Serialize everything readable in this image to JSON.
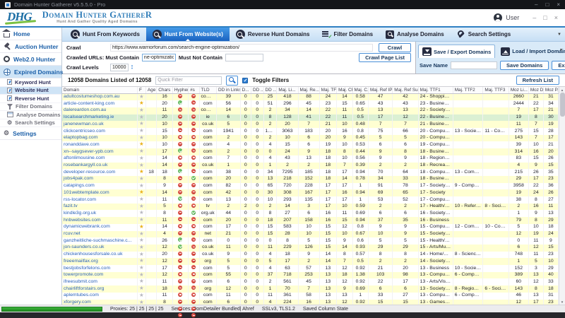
{
  "window": {
    "title": "Domain Hunter Gatherer v5.5.5.0 - Pro"
  },
  "header": {
    "logo": "DHG",
    "name": "Domain Hunter GathereR",
    "tagline": "Hunt And Gather Quality Aged Domains",
    "user": "User"
  },
  "tabs": [
    {
      "label": "Hunt From Keywords",
      "active": false
    },
    {
      "label": "Hunt From Website(s)",
      "active": true
    },
    {
      "label": "Reverse Hunt Domains",
      "active": false
    },
    {
      "label": "Filter Domains",
      "active": false
    },
    {
      "label": "Analyse Domains",
      "active": false
    },
    {
      "label": "Search Settings",
      "active": false
    }
  ],
  "sidebar": {
    "items": [
      {
        "label": "Home"
      },
      {
        "label": "Auction Hunter"
      },
      {
        "label": "Web2.0 Hunter"
      },
      {
        "label": "Expired Domains"
      }
    ],
    "sub_items": [
      {
        "label": "Keyword Hunt"
      },
      {
        "label": "Website Hunt"
      },
      {
        "label": "Reverse Hunt"
      },
      {
        "label": "Filter Domains"
      },
      {
        "label": "Analyse Domains"
      },
      {
        "label": "Search Settings"
      }
    ],
    "settings_label": "Settings"
  },
  "crawl": {
    "crawl_label": "Crawl",
    "url": "https://www.warriorforum.com/search-engine-optimization/",
    "crawl_button": "Crawl",
    "must_contain_label": "Crawled URLs: Must Contain",
    "must_contain_value": "ne-optimization",
    "must_not_contain_label": "Must Not Contain",
    "must_not_contain_value": "",
    "levels_label": "Crawl Levels",
    "levels_value": "10000",
    "crawl_page_list_button": "Crawl Page List"
  },
  "save_panel": {
    "save_export_tab": "Save / Export Domains",
    "load_import_tab": "Load / Import Domains",
    "save_name_label": "Save Name",
    "save_name_value": "",
    "save_domains_button": "Save Domains",
    "export_filtered_button": "Export Filtered"
  },
  "filter_bar": {
    "count_text": "12058 Domains Listed of 12058",
    "quick_filter_placeholder": "Quick Filter",
    "toggle_filters_label": "Toggle Filters",
    "refresh_button": "Refresh List"
  },
  "table": {
    "columns": [
      "Domain",
      "F",
      "Age",
      "Chars",
      "Hyphen",
      "#s",
      "TLD",
      "DD in Links",
      "D...",
      "DD ...",
      "DD ...",
      "Maj. Li...",
      "Maj. Re...",
      "Maj. TF",
      "Maj. CF",
      "Maj. C...",
      "Maj. Ref IPs",
      "Maj. Ref Su...",
      "Maj. TTF1",
      "Maj. TTF2",
      "Maj. TTF3",
      "Moz Li...",
      "Moz DA",
      "Moz PA"
    ],
    "rows": [
      [
        "adultcostumeshop.com.au",
        0,
        "",
        16,
        0,
        0,
        "com.au",
        39,
        0,
        0,
        25,
        418,
        88,
        24,
        14,
        0.58,
        47,
        42,
        "24 - Shopping/Clothi...",
        "",
        "",
        2660,
        21,
        31,
        0
      ],
      [
        "article-content-king.com",
        1,
        "",
        20,
        1,
        0,
        "com",
        56,
        0,
        0,
        51,
        296,
        45,
        23,
        15,
        0.65,
        43,
        43,
        "23 - Business/Publish...",
        "",
        "",
        2444,
        22,
        34,
        0
      ],
      [
        "dalereardon.com.au",
        0,
        "",
        11,
        0,
        0,
        "com.au",
        14,
        0,
        0,
        2,
        34,
        14,
        22,
        11,
        0.5,
        13,
        13,
        "22 - Society/People",
        "",
        "",
        7,
        17,
        21,
        0
      ],
      [
        "localsearchmarketing.ie",
        0,
        "",
        20,
        0,
        0,
        "ie",
        6,
        0,
        0,
        8,
        128,
        41,
        22,
        11,
        0.5,
        17,
        12,
        "22 - Business/Market...",
        "",
        "",
        19,
        8,
        30,
        1
      ],
      [
        "janenewman.co.uk",
        0,
        "",
        10,
        0,
        0,
        "co.uk",
        5,
        0,
        0,
        2,
        20,
        7,
        21,
        10,
        0.48,
        7,
        7,
        "21 - Business/Arts an...",
        "",
        "",
        11,
        7,
        19,
        0
      ],
      [
        "clickcentricseo.com",
        0,
        "",
        15,
        0,
        0,
        "com",
        1941,
        0,
        0,
        1942,
        3063,
        183,
        20,
        16,
        0.8,
        75,
        66,
        "20 - Computers/Inter...",
        "13 - Society/Reli...",
        "11 - Computer...",
        275,
        15,
        28,
        0
      ],
      [
        "elaptopbag.com",
        0,
        "",
        10,
        0,
        0,
        "com",
        2,
        0,
        0,
        2,
        10,
        6,
        20,
        9,
        0.45,
        5,
        5,
        "20 - Computers/Har...",
        "",
        "",
        143,
        7,
        17,
        0
      ],
      [
        "ronanddave.com",
        1,
        "",
        10,
        0,
        0,
        "com",
        4,
        0,
        0,
        4,
        15,
        6,
        19,
        10,
        0.53,
        6,
        6,
        "19 - Computers/Soft...",
        "",
        "",
        39,
        10,
        21,
        0
      ],
      [
        "xn--saygsever-ypb.com",
        0,
        "",
        17,
        1,
        0,
        "com",
        2,
        0,
        0,
        0,
        24,
        9,
        18,
        8,
        0.44,
        9,
        8,
        "18 - Business/Food a...",
        "",
        "",
        314,
        16,
        20,
        0
      ],
      [
        "aftonlimousine.com",
        0,
        "",
        14,
        0,
        0,
        "com",
        7,
        0,
        0,
        4,
        43,
        13,
        18,
        10,
        0.56,
        9,
        9,
        "18 - Regional/North ...",
        "",
        "",
        83,
        15,
        26,
        0
      ],
      [
        "rosebankargyll.co.uk",
        0,
        "",
        14,
        0,
        0,
        "co.uk",
        1,
        0,
        0,
        1,
        2,
        2,
        18,
        7,
        0.39,
        2,
        2,
        "18 - Recreation/Travel",
        "",
        "",
        4,
        9,
        15,
        0
      ],
      [
        "developer-resource.com",
        1,
        "18",
        18,
        1,
        0,
        "com",
        38,
        0,
        0,
        34,
        7295,
        185,
        18,
        17,
        0.94,
        70,
        64,
        "18 - Computers/Soft...",
        "13 - Computers/...",
        "",
        215,
        26,
        35,
        0
      ],
      [
        "jobs4pak.com",
        0,
        "",
        8,
        0,
        1,
        "com",
        20,
        0,
        0,
        13,
        218,
        152,
        18,
        14,
        0.78,
        34,
        33,
        "18 - Business/Emplo...",
        "",
        "",
        29,
        17,
        23,
        0
      ],
      [
        "catapings.com",
        0,
        "",
        9,
        0,
        0,
        "com",
        82,
        0,
        0,
        65,
        720,
        228,
        17,
        17,
        1,
        91,
        78,
        "17 - Society/People",
        "9 - Computers/I...",
        "",
        3958,
        22,
        36,
        0
      ],
      [
        "101webtemplate.com",
        1,
        "",
        14,
        0,
        0,
        "com",
        42,
        0,
        0,
        30,
        308,
        167,
        17,
        16,
        0.94,
        69,
        65,
        "17 - Society",
        "",
        "",
        19,
        24,
        26,
        0
      ],
      [
        "rss-locator.com",
        0,
        "",
        11,
        1,
        0,
        "com",
        13,
        0,
        0,
        10,
        293,
        135,
        17,
        17,
        1,
        53,
        52,
        "17 - Computers/Inter...",
        "",
        "",
        38,
        8,
        27,
        0
      ],
      [
        "fazit.tv",
        0,
        "",
        5,
        0,
        0,
        "tv",
        2,
        2,
        0,
        2,
        14,
        3,
        17,
        10,
        0.59,
        2,
        2,
        "17 - Health/Public H...",
        "10 - Reference/E...",
        "8 - Society/Phil...",
        2,
        16,
        11,
        0
      ],
      [
        "kindle3g.org.uk",
        0,
        "",
        8,
        0,
        1,
        "org.uk",
        44,
        0,
        0,
        8,
        27,
        6,
        16,
        11,
        0.69,
        6,
        6,
        "16 - Society/Paranor...",
        "",
        "",
        1,
        9,
        13,
        0
      ],
      [
        "hnbwebsites.com",
        0,
        "",
        11,
        0,
        0,
        "com",
        20,
        0,
        0,
        18,
        207,
        158,
        16,
        15,
        0.94,
        37,
        35,
        "16 - Business",
        "",
        "",
        79,
        8,
        29,
        0
      ],
      [
        "dynamicwebrank.com",
        1,
        "",
        14,
        0,
        0,
        "com",
        17,
        0,
        0,
        15,
        583,
        10,
        15,
        12,
        0.8,
        9,
        9,
        "15 - Computers/Soft...",
        "12 - Computers/...",
        "10 - Computer...",
        5,
        10,
        18,
        0
      ],
      [
        "rcuv.net",
        0,
        "",
        4,
        0,
        0,
        "net",
        21,
        0,
        0,
        15,
        28,
        10,
        15,
        10,
        0.67,
        10,
        9,
        "15 - Society/Ethnicity",
        "",
        "",
        12,
        19,
        24,
        0
      ],
      [
        "ganzheitliche-suchmaschine.c...",
        0,
        "",
        26,
        1,
        0,
        "com",
        0,
        0,
        0,
        0,
        8,
        5,
        15,
        9,
        0.6,
        5,
        5,
        "15 - Health/Alternative",
        "",
        "",
        0,
        11,
        9,
        0
      ],
      [
        "jon-saunders.co.uk",
        0,
        "",
        12,
        1,
        0,
        "co.uk",
        11,
        0,
        0,
        11,
        229,
        126,
        15,
        14,
        0.93,
        29,
        29,
        "15 - Arts/Music",
        "",
        "",
        6,
        12,
        15,
        0
      ],
      [
        "chickenhousesforsale.co.uk",
        0,
        "",
        20,
        0,
        0,
        "co.uk",
        9,
        0,
        0,
        4,
        18,
        9,
        14,
        8,
        0.57,
        8,
        8,
        "14 - Home/Rural Livi...",
        "8 - Science/Biolo...",
        "",
        748,
        11,
        23,
        0
      ],
      [
        "freeemailfax.org",
        0,
        "",
        12,
        0,
        0,
        "org",
        5,
        0,
        0,
        5,
        17,
        2,
        14,
        7,
        0.5,
        2,
        2,
        "14 - Society/Paranor...",
        "",
        "",
        1,
        5,
        10,
        0
      ],
      [
        "bestjobsforfelons.com",
        0,
        "",
        17,
        0,
        0,
        "com",
        5,
        0,
        0,
        4,
        63,
        57,
        13,
        12,
        0.92,
        21,
        20,
        "13 - Business",
        "10 - Society/Reli...",
        "",
        152,
        3,
        29,
        0
      ],
      [
        "towerpromote.com",
        0,
        "",
        12,
        0,
        0,
        "com",
        55,
        0,
        0,
        37,
        718,
        253,
        13,
        18,
        1.38,
        103,
        98,
        "13 - Computers/Soft...",
        "6 - Computers/S...",
        "",
        389,
        13,
        40,
        0
      ],
      [
        "ifreesubmit.com",
        0,
        "",
        11,
        0,
        0,
        "com",
        6,
        0,
        0,
        2,
        561,
        45,
        13,
        12,
        0.92,
        22,
        17,
        "13 - Arts/Visual Arts",
        "",
        "",
        60,
        12,
        33,
        0
      ],
      [
        "chairliftforstairs.org",
        0,
        "",
        18,
        0,
        0,
        "org",
        12,
        0,
        0,
        1,
        70,
        7,
        13,
        9,
        0.69,
        6,
        6,
        "13 - Society/Organiz...",
        "8 - Regional/Asia",
        "6 - Society/Reli...",
        143,
        8,
        18,
        0
      ],
      [
        "aplemtubes.com",
        0,
        "",
        11,
        0,
        0,
        "com",
        11,
        0,
        0,
        11,
        361,
        58,
        13,
        13,
        1,
        33,
        27,
        "13 - Computers/Soft...",
        "6 - Computers/S...",
        "",
        46,
        13,
        31,
        0
      ],
      [
        "xforgery.com",
        0,
        "",
        8,
        0,
        0,
        "com",
        6,
        0,
        0,
        4,
        224,
        16,
        13,
        12,
        0.92,
        15,
        15,
        "13 - Games/Video G...",
        "",
        "",
        12,
        17,
        23,
        0
      ],
      [
        "rssfeeds.co.il",
        0,
        "",
        8,
        0,
        0,
        "co.il",
        94,
        0,
        0,
        12,
        420,
        298,
        13,
        8,
        0.62,
        192,
        148,
        "13 - Computers/Inter...",
        "6 - Society/People",
        "",
        21,
        20,
        32,
        0
      ],
      [
        "recap.ltd.uk",
        0,
        "",
        5,
        0,
        0,
        "ltd.uk",
        1982,
        7,
        0,
        1959,
        600,
        253,
        12,
        18,
        1.5,
        115,
        109,
        "12 - Society/Ethnicity",
        "11 - Society/Gen...",
        "10 - Computer...",
        976748,
        38,
        34,
        0
      ],
      [
        "ancient-voices.com",
        0,
        "",
        14,
        1,
        0,
        "com",
        7,
        0,
        0,
        7,
        59,
        16,
        12,
        12,
        1,
        16,
        15,
        "12 - Recreation/Travel",
        "",
        "",
        37,
        11,
        24,
        0
      ]
    ]
  },
  "status_bar": {
    "proxies": "Proxies: 25 | 25 | 25 | 25",
    "services": "Services: DomDetailer Bundled| Ahref",
    "ssl": "SSLv3, TLS1.2",
    "column_state": "Saved Column State"
  }
}
